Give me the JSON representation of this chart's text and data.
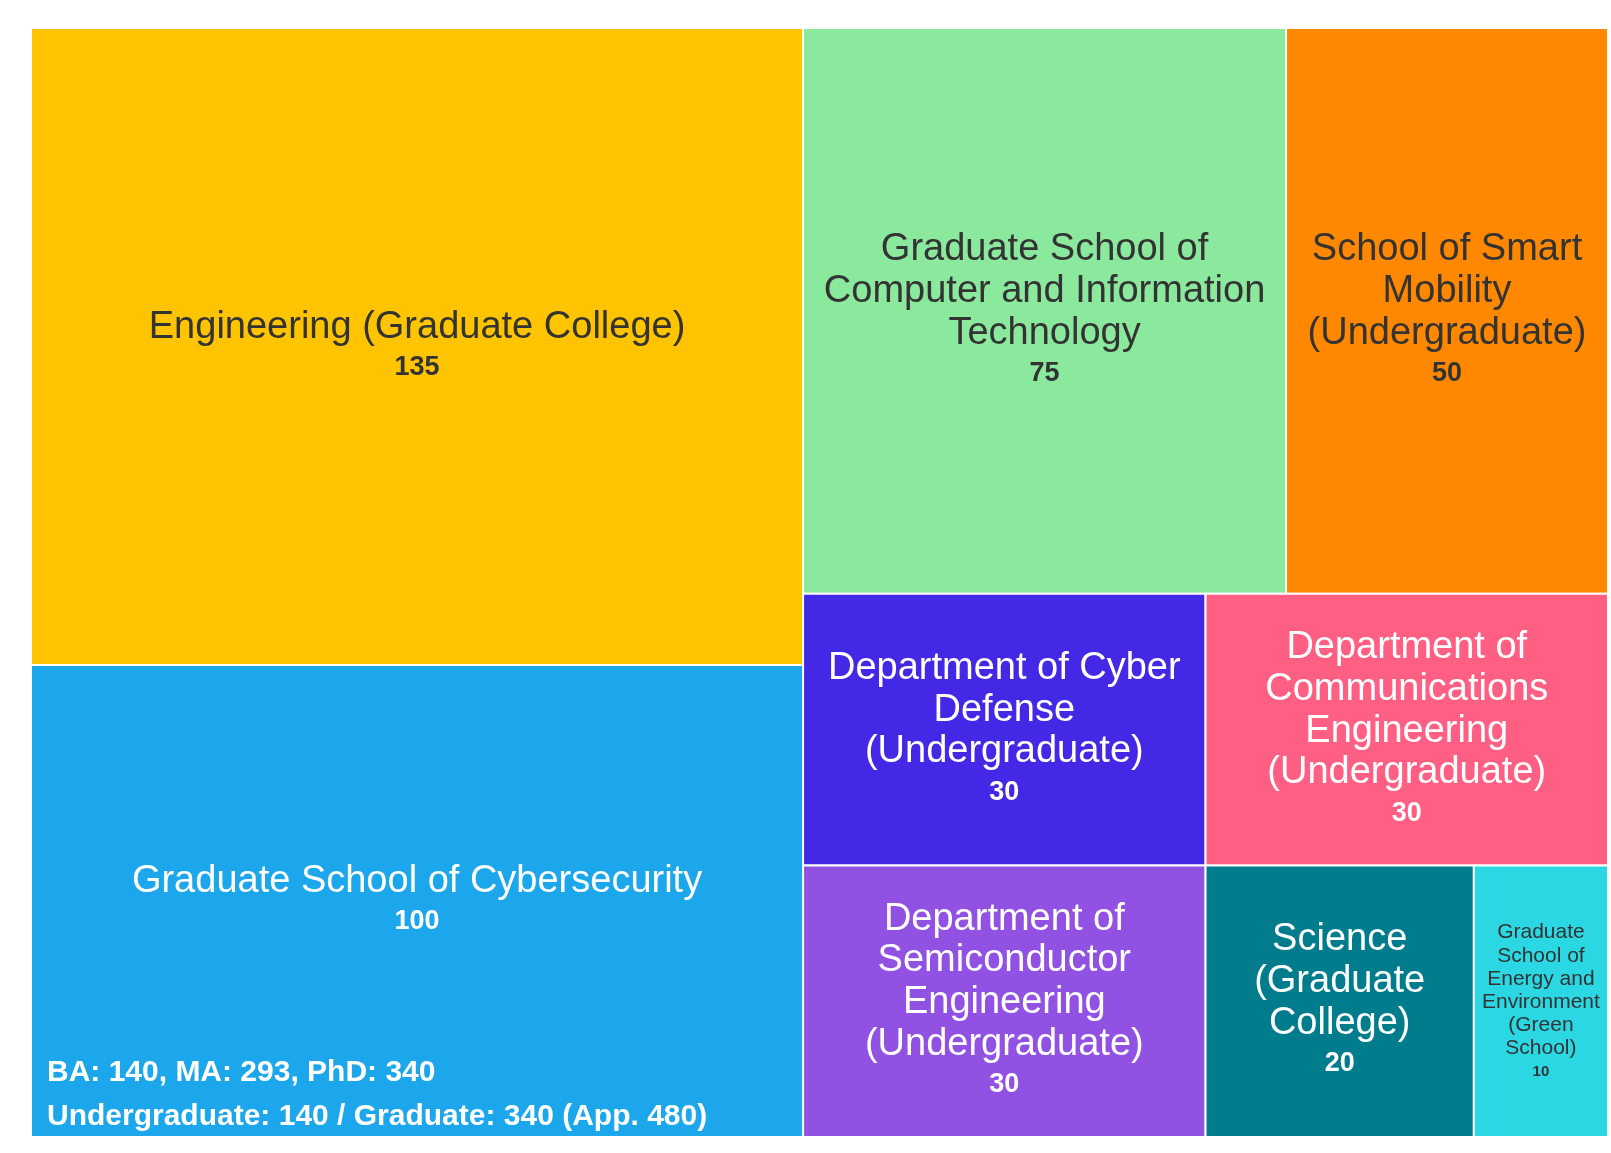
{
  "chart_data": {
    "type": "other",
    "categories": [
      "Engineering (Graduate College)",
      "Graduate School of Cybersecurity",
      "Graduate School of Computer and Information Technology",
      "School of Smart Mobility (Undergraduate)",
      "Department of Cyber Defense (Undergraduate)",
      "Department of Semiconductor Engineering (Undergraduate)",
      "Department of Communications Engineering (Undergraduate)",
      "Science (Graduate College)",
      "Graduate School of Energy and Environment (Green School)"
    ],
    "values": [
      135,
      100,
      75,
      50,
      30,
      30,
      30,
      20,
      10
    ],
    "colors": [
      "#fec400",
      "#1ca7ec",
      "#8ae99c",
      "#ff8800",
      "#4329e6",
      "#9151e3",
      "#fe5f83",
      "#007c8c",
      "#2bd7e3"
    ],
    "data_labels": true,
    "annotations": [
      "BA: 140, MA: 293, PhD: 340",
      "Undergraduate: 140 / Graduate: 340 (App. 480)"
    ]
  }
}
